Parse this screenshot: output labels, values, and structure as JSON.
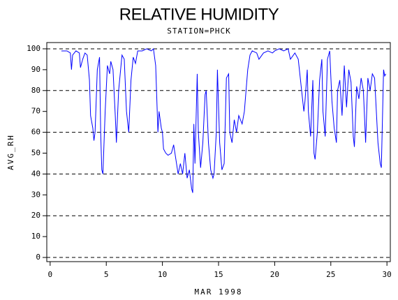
{
  "chart_data": {
    "type": "line",
    "title": "RELATIVE HUMIDITY",
    "subtitle": "STATION=PHCK",
    "xlabel": "MAR 1998",
    "ylabel": "AVG_RH",
    "color": "#0000ff",
    "xlim": [
      -0.3,
      30.3
    ],
    "ylim": [
      -2,
      103
    ],
    "xticks": [
      0,
      5,
      10,
      15,
      20,
      25,
      30
    ],
    "yticks": [
      0,
      10,
      20,
      30,
      40,
      50,
      60,
      70,
      80,
      90,
      100
    ],
    "ygrid": [
      0,
      20,
      40,
      60,
      80,
      100
    ],
    "x": [
      1.0,
      1.5,
      1.8,
      1.9,
      2.0,
      2.3,
      2.6,
      2.7,
      2.9,
      3.1,
      3.3,
      3.5,
      3.6,
      3.8,
      3.9,
      4.0,
      4.2,
      4.4,
      4.5,
      4.6,
      4.7,
      4.9,
      5.1,
      5.3,
      5.4,
      5.6,
      5.8,
      5.9,
      6.1,
      6.4,
      6.6,
      6.8,
      7.0,
      7.2,
      7.4,
      7.6,
      7.8,
      8.2,
      8.6,
      9.0,
      9.2,
      9.4,
      9.6,
      9.7,
      9.9,
      10.0,
      10.1,
      10.3,
      10.5,
      10.8,
      11.0,
      11.2,
      11.4,
      11.6,
      11.8,
      12.0,
      12.2,
      12.4,
      12.6,
      12.7,
      12.8,
      12.9,
      13.1,
      13.2,
      13.4,
      13.6,
      13.8,
      13.9,
      14.1,
      14.3,
      14.5,
      14.6,
      14.8,
      14.9,
      15.1,
      15.3,
      15.5,
      15.7,
      15.9,
      16.0,
      16.2,
      16.4,
      16.6,
      16.8,
      17.1,
      17.3,
      17.6,
      17.8,
      18.0,
      18.4,
      18.6,
      19.0,
      19.4,
      19.8,
      20.0,
      20.4,
      20.8,
      21.2,
      21.4,
      21.8,
      22.1,
      22.3,
      22.6,
      22.7,
      22.9,
      23.0,
      23.2,
      23.4,
      23.5,
      23.6,
      23.8,
      24.0,
      24.2,
      24.3,
      24.5,
      24.7,
      24.9,
      25.1,
      25.3,
      25.5,
      25.6,
      25.8,
      26.0,
      26.2,
      26.4,
      26.6,
      26.8,
      27.0,
      27.1,
      27.3,
      27.5,
      27.7,
      27.9,
      28.1,
      28.3,
      28.5,
      28.7,
      28.9,
      29.2,
      29.4,
      29.5,
      29.7,
      29.8,
      29.9
    ],
    "values": [
      99,
      99,
      98,
      90,
      97,
      99,
      98,
      91,
      95,
      98,
      97,
      85,
      68,
      62,
      56,
      60,
      90,
      96,
      60,
      42,
      40,
      70,
      92,
      88,
      94,
      90,
      68,
      55,
      80,
      97,
      95,
      70,
      60,
      85,
      96,
      93,
      99,
      99,
      100,
      99,
      100,
      92,
      60,
      70,
      62,
      60,
      52,
      50,
      49,
      50,
      54,
      47,
      40,
      45,
      40,
      50,
      38,
      42,
      33,
      31,
      64,
      45,
      88,
      60,
      43,
      55,
      78,
      80,
      55,
      42,
      38,
      40,
      60,
      90,
      55,
      42,
      45,
      86,
      88,
      60,
      55,
      66,
      60,
      68,
      64,
      70,
      90,
      97,
      99,
      98,
      95,
      98,
      99,
      98,
      99,
      100,
      99,
      100,
      95,
      98,
      95,
      85,
      70,
      75,
      90,
      70,
      58,
      85,
      50,
      47,
      60,
      85,
      95,
      70,
      58,
      95,
      99,
      75,
      62,
      55,
      80,
      85,
      68,
      92,
      72,
      90,
      84,
      58,
      53,
      82,
      76,
      86,
      80,
      55,
      86,
      80,
      88,
      86,
      55,
      45,
      43,
      90,
      87,
      88
    ]
  }
}
